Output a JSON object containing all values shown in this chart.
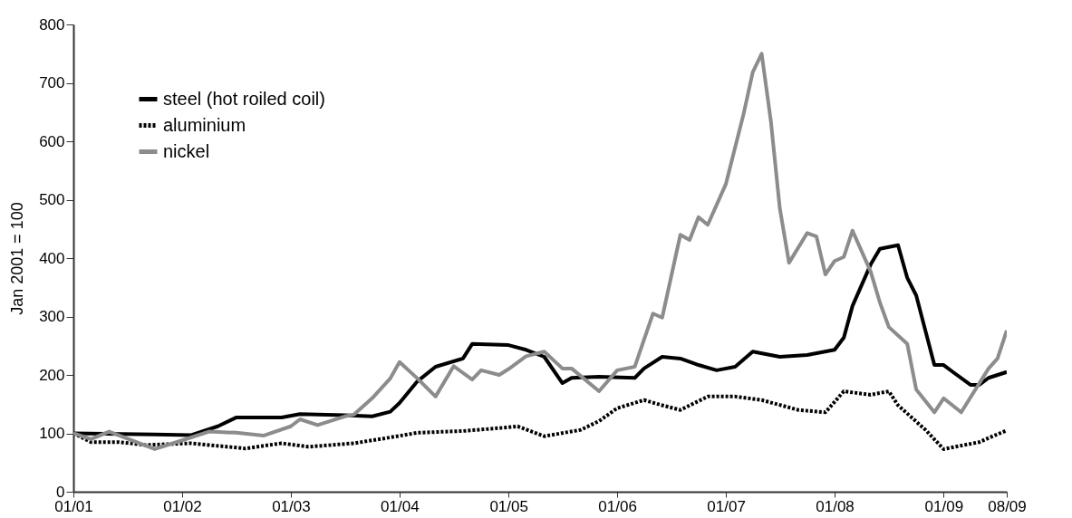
{
  "chart_data": {
    "type": "line",
    "ylabel": "Jan 2001 = 100",
    "ylim": [
      0,
      800
    ],
    "yticks": [
      0,
      100,
      200,
      300,
      400,
      500,
      600,
      700,
      800
    ],
    "xlim": [
      "2001-01",
      "2009-08"
    ],
    "xticks": [
      {
        "value": "2001-01",
        "label": "01/01"
      },
      {
        "value": "2002-01",
        "label": "01/02"
      },
      {
        "value": "2003-01",
        "label": "01/03"
      },
      {
        "value": "2004-01",
        "label": "01/04"
      },
      {
        "value": "2005-01",
        "label": "01/05"
      },
      {
        "value": "2006-01",
        "label": "01/06"
      },
      {
        "value": "2007-01",
        "label": "01/07"
      },
      {
        "value": "2008-01",
        "label": "01/08"
      },
      {
        "value": "2009-01",
        "label": "01/09"
      },
      {
        "value": "2009-08",
        "label": "08/09"
      }
    ],
    "legend": "top left",
    "grid": false,
    "series": [
      {
        "name": "steel (hot roiled coil)",
        "color": "#000000",
        "line_style": "solid",
        "x": [
          "2001-01",
          "2001-10",
          "2002-02",
          "2002-05",
          "2002-07",
          "2002-12",
          "2003-02",
          "2003-07",
          "2003-10",
          "2003-12",
          "2004-01",
          "2004-03",
          "2004-05",
          "2004-08",
          "2004-09",
          "2005-01",
          "2005-03",
          "2005-05",
          "2005-07",
          "2005-08",
          "2005-11",
          "2006-03",
          "2006-04",
          "2006-06",
          "2006-08",
          "2006-10",
          "2006-12",
          "2007-02",
          "2007-04",
          "2007-07",
          "2007-10",
          "2008-01",
          "2008-02",
          "2008-03",
          "2008-05",
          "2008-06",
          "2008-08",
          "2008-09",
          "2008-10",
          "2008-12",
          "2009-01",
          "2009-02",
          "2009-04",
          "2009-05",
          "2009-06",
          "2009-08"
        ],
        "values": [
          100,
          98,
          97,
          112,
          127,
          127,
          133,
          131,
          129,
          137,
          152,
          189,
          214,
          228,
          253,
          251,
          243,
          231,
          186,
          195,
          197,
          195,
          211,
          231,
          228,
          217,
          208,
          214,
          240,
          231,
          234,
          243,
          264,
          318,
          389,
          416,
          422,
          366,
          336,
          217,
          217,
          205,
          183,
          183,
          195,
          205
        ]
      },
      {
        "name": "aluminium",
        "color": "#000000",
        "line_style": "dotted",
        "x": [
          "2001-01",
          "2001-03",
          "2001-06",
          "2001-09",
          "2002-02",
          "2002-08",
          "2002-12",
          "2003-03",
          "2003-08",
          "2003-12",
          "2004-03",
          "2004-08",
          "2004-12",
          "2005-02",
          "2005-05",
          "2005-09",
          "2005-11",
          "2006-01",
          "2006-04",
          "2006-06",
          "2006-08",
          "2006-11",
          "2007-02",
          "2007-05",
          "2007-09",
          "2007-12",
          "2008-02",
          "2008-05",
          "2008-07",
          "2008-08",
          "2008-11",
          "2009-01",
          "2009-05",
          "2009-06",
          "2009-08"
        ],
        "values": [
          100,
          85,
          85,
          80,
          83,
          74,
          83,
          77,
          83,
          93,
          101,
          104,
          109,
          112,
          95,
          106,
          121,
          143,
          157,
          148,
          140,
          163,
          163,
          157,
          140,
          136,
          172,
          166,
          172,
          148,
          106,
          73,
          85,
          92,
          105
        ]
      },
      {
        "name": "nickel",
        "color": "#8c8c8c",
        "line_style": "solid",
        "x": [
          "2001-01",
          "2001-03",
          "2001-05",
          "2001-10",
          "2002-01",
          "2002-04",
          "2002-07",
          "2002-10",
          "2003-01",
          "2003-02",
          "2003-04",
          "2003-07",
          "2003-08",
          "2003-10",
          "2003-12",
          "2004-01",
          "2004-03",
          "2004-05",
          "2004-07",
          "2004-09",
          "2004-10",
          "2004-12",
          "2005-01",
          "2005-03",
          "2005-05",
          "2005-07",
          "2005-08",
          "2005-11",
          "2006-01",
          "2006-03",
          "2006-05",
          "2006-06",
          "2006-08",
          "2006-09",
          "2006-10",
          "2006-11",
          "2007-01",
          "2007-03",
          "2007-04",
          "2007-05",
          "2007-06",
          "2007-07",
          "2007-08",
          "2007-10",
          "2007-11",
          "2007-12",
          "2008-01",
          "2008-02",
          "2008-03",
          "2008-05",
          "2008-06",
          "2008-07",
          "2008-09",
          "2008-10",
          "2008-12",
          "2009-01",
          "2009-03",
          "2009-06",
          "2009-07",
          "2009-08"
        ],
        "values": [
          100,
          90,
          103,
          73,
          88,
          103,
          101,
          96,
          112,
          124,
          114,
          129,
          132,
          160,
          194,
          222,
          194,
          163,
          215,
          192,
          208,
          200,
          210,
          232,
          240,
          211,
          211,
          172,
          208,
          214,
          305,
          298,
          440,
          431,
          470,
          457,
          527,
          646,
          718,
          750,
          634,
          485,
          392,
          443,
          437,
          372,
          395,
          402,
          447,
          377,
          324,
          282,
          253,
          175,
          136,
          160,
          136,
          211,
          228,
          276
        ]
      }
    ]
  }
}
